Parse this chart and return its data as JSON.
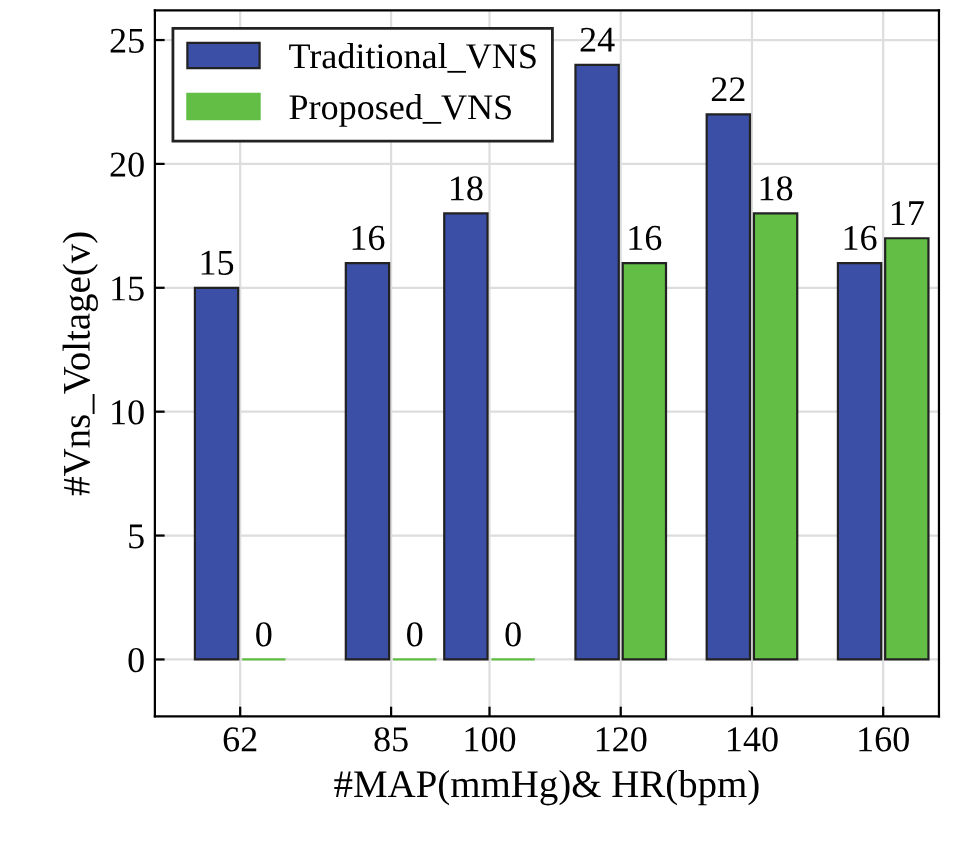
{
  "chart_data": {
    "type": "bar",
    "xlabel": "#MAP(mmHg)& HR(bpm)",
    "ylabel": "#Vns_Voltage(v)",
    "x": [
      62,
      85,
      100,
      120,
      140,
      160
    ],
    "series": [
      {
        "name": "Traditional_VNS",
        "color": "#3b4fa6",
        "values": [
          15,
          16,
          18,
          24,
          22,
          16
        ]
      },
      {
        "name": "Proposed_VNS",
        "color": "#62be45",
        "values": [
          0,
          0,
          0,
          16,
          18,
          17
        ]
      }
    ],
    "xlim": [
      49,
      168.5
    ],
    "ylim": [
      -2.3,
      26.2
    ],
    "xticks": [
      62,
      85,
      100,
      120,
      140,
      160
    ],
    "yticks": [
      0,
      5,
      10,
      15,
      20,
      25
    ],
    "grid": true,
    "legend": "top left",
    "data_labels": true
  }
}
